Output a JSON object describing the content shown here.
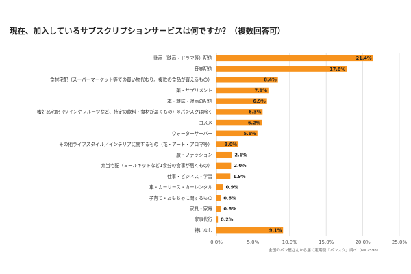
{
  "title": "現在、加入しているサブスクリプションサービスは何ですか？（複数回答可）",
  "source": "全国のパン屋さんから届く定期便「パンスク」調べ（N=2598）",
  "colors": {
    "bar": "#f7931e",
    "grid": "#dddddd",
    "axis": "#cccccc"
  },
  "chart_data": {
    "type": "bar",
    "orientation": "horizontal",
    "title": "現在、加入しているサブスクリプションサービスは何ですか？（複数回答可）",
    "xlim": [
      0,
      25
    ],
    "ticks": [
      0,
      5,
      10,
      15,
      20,
      25
    ],
    "tick_labels": [
      "0.0%",
      "5.0%",
      "10.0%",
      "15.0%",
      "20.0%",
      "25.0%"
    ],
    "grid": "vertical",
    "legend": "none",
    "categories": [
      "動画（映画・ドラマ等）配信",
      "音楽配信",
      "食材宅配（スーパーマーケット等での買い物代わり。複数の食品が買えるもの）",
      "薬・サプリメント",
      "本・雑誌・漫画の配信",
      "嗜好品宅配（ワインやフルーツなど、特定の飲料・食材が届くもの）※パンスクは除く",
      "コスメ",
      "ウォーターサーバー",
      "その他ライフスタイル／インテリアに関するもの（花・アート・アロマ等）",
      "服・ファッション",
      "弁当宅配（ミールキットなど1食分の食事が届くもの）",
      "仕事・ビジネス・学習",
      "車・カーリース・カーレンタル",
      "子育て・おもちゃに関するもの",
      "家具・家電",
      "家事代行",
      "特になし"
    ],
    "values": [
      21.4,
      17.8,
      8.4,
      7.1,
      6.9,
      6.3,
      6.2,
      5.6,
      3.0,
      2.1,
      2.0,
      1.9,
      0.9,
      0.6,
      0.6,
      0.2,
      9.1
    ],
    "value_labels": [
      "21.4%",
      "17.8%",
      "8.4%",
      "7.1%",
      "6.9%",
      "6.3%",
      "6.2%",
      "5.6%",
      "3.0%",
      "2.1%",
      "2.0%",
      "1.9%",
      "0.9%",
      "0.6%",
      "0.6%",
      "0.2%",
      "9.1%"
    ]
  }
}
